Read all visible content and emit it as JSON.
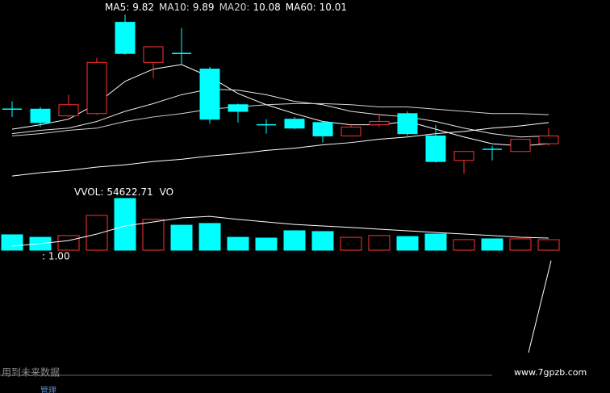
{
  "chart_data": [
    {
      "type": "candlestick",
      "open": [
        10.13,
        10.13,
        10.07,
        10.09,
        10.91,
        10.55,
        10.63,
        10.49,
        10.17,
        9.99,
        10.04,
        10.01,
        9.89,
        9.99,
        10.09,
        9.89,
        9.67,
        9.77,
        9.75,
        9.82
      ],
      "high": [
        10.2,
        10.15,
        10.26,
        10.59,
        10.98,
        10.69,
        10.86,
        10.51,
        10.18,
        10.04,
        10.06,
        10.02,
        9.99,
        10.09,
        10.11,
        9.99,
        9.75,
        9.8,
        9.86,
        9.96
      ],
      "low": [
        10.06,
        9.97,
        10.06,
        10.08,
        10.62,
        10.41,
        10.53,
        10.0,
        10.01,
        9.91,
        9.95,
        9.83,
        9.89,
        9.97,
        9.89,
        9.65,
        9.55,
        9.67,
        9.75,
        9.8
      ],
      "close": [
        10.13,
        10.01,
        10.17,
        10.55,
        10.63,
        10.69,
        10.63,
        10.04,
        10.11,
        9.99,
        9.96,
        9.89,
        9.97,
        10.02,
        9.91,
        9.66,
        9.75,
        9.77,
        9.86,
        9.89
      ],
      "up_color": "#ff3232",
      "down_color": "#00ffff",
      "ylim": [
        9.48,
        11.11
      ],
      "series": [
        {
          "name": "MA5:",
          "color": "#ffffff",
          "values": [
            9.95,
            9.99,
            10.04,
            10.18,
            10.38,
            10.49,
            10.53,
            10.42,
            10.27,
            10.17,
            10.09,
            10.02,
            9.99,
            9.99,
            10.02,
            9.95,
            9.88,
            9.82,
            9.8,
            9.82
          ]
        },
        {
          "name": "MA10:",
          "color": "#e6e6e6",
          "values": [
            9.91,
            9.94,
            9.96,
            10.02,
            10.11,
            10.18,
            10.26,
            10.31,
            10.3,
            10.26,
            10.2,
            10.17,
            10.11,
            10.08,
            10.06,
            10.02,
            9.96,
            9.91,
            9.88,
            9.89
          ]
        },
        {
          "name": "MA20:",
          "color": "#d2d2d2",
          "values": [
            9.89,
            9.91,
            9.94,
            9.96,
            10.02,
            10.06,
            10.09,
            10.13,
            10.15,
            10.17,
            10.18,
            10.18,
            10.17,
            10.15,
            10.15,
            10.13,
            10.11,
            10.09,
            10.09,
            10.08
          ]
        },
        {
          "name": "MA60:",
          "color": "#ffffff",
          "values": [
            9.53,
            9.56,
            9.58,
            9.61,
            9.63,
            9.66,
            9.68,
            9.71,
            9.73,
            9.76,
            9.78,
            9.81,
            9.83,
            9.86,
            9.88,
            9.91,
            9.93,
            9.96,
            9.98,
            10.01
          ]
        }
      ]
    },
    {
      "type": "bar",
      "name": "VVOL:",
      "values": [
        80000,
        67000,
        76000,
        181000,
        269000,
        160000,
        130000,
        139000,
        67000,
        63000,
        101000,
        97000,
        67000,
        76000,
        71000,
        84000,
        55000,
        59000,
        59000,
        54622.71
      ],
      "ylim": [
        0,
        336000
      ],
      "series": [
        {
          "name": "VO",
          "color": "#ffffff",
          "values": [
            21000,
            34000,
            50000,
            84000,
            126000,
            147000,
            168000,
            176000,
            160000,
            147000,
            134000,
            126000,
            118000,
            109000,
            101000,
            92000,
            84000,
            76000,
            67000,
            63000
          ]
        }
      ]
    }
  ],
  "indicator_label": ": 1.00",
  "footer": {
    "note": "用到未来数据",
    "website": "www.7gpzb.com",
    "tab": "管理"
  }
}
